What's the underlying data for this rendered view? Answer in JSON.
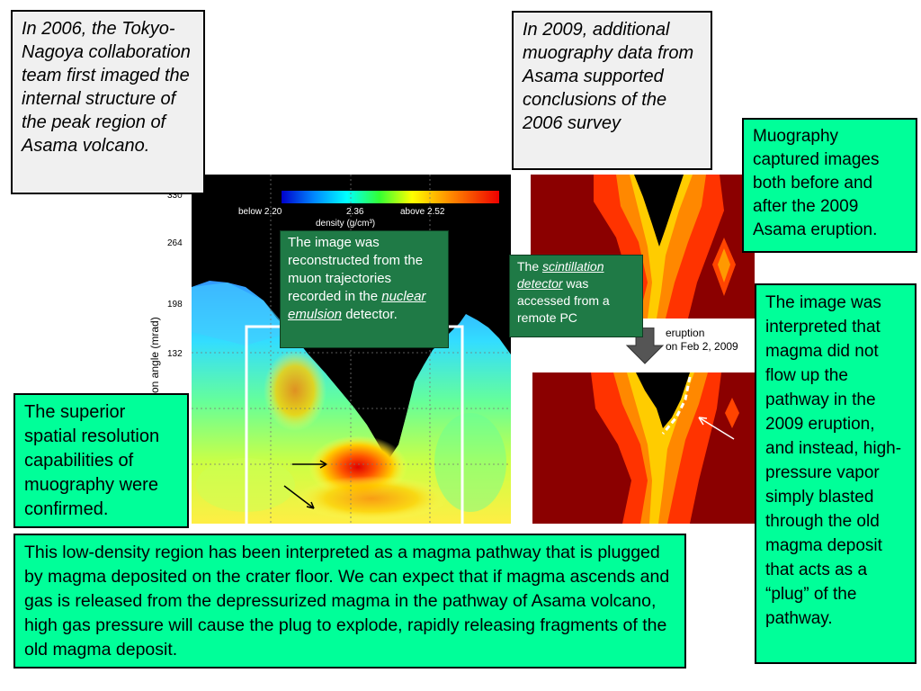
{
  "notes": {
    "note_2006": "In 2006, the Tokyo-Nagoya collaboration team first imaged the internal structure of the peak region of Asama volcano.",
    "note_2009": "In 2009, additional muography data from Asama supported conclusions of the 2006 survey",
    "muography_captured": "Muography captured images both before and after the 2009 Asama eruption.",
    "interpretation": "The image was interpreted that magma did not flow up the pathway in the 2009 eruption, and instead, high-pressure vapor simply blasted through the old magma deposit that acts as a “plug” of the pathway.",
    "superior_resolution": "The superior spatial resolution capabilities of muography were confirmed.",
    "low_density_region": "This low-density region has been interpreted as a magma pathway that is plugged by magma deposited on the crater floor. We can expect that if magma ascends and gas is released from the depressurized magma in the pathway of Asama volcano, high gas pressure will cause the plug to explode, rapidly releasing fragments of the old magma deposit."
  },
  "reconstruction_note": {
    "before": "The image was reconstructed from the muon trajectories recorded in the ",
    "link": "nuclear emulsion",
    "after": " detector."
  },
  "scintillation_note": {
    "before": "The ",
    "link": "scintillation detector",
    "after": " was accessed from a remote PC"
  },
  "density_map": {
    "y_ticks": [
      "330",
      "264",
      "198",
      "132"
    ],
    "y_axis_label": "on angle (mrad)",
    "colorbar": {
      "low": "below 2.20",
      "mid": "2.36",
      "high": "above 2.52",
      "label": "density (g/cm³)"
    }
  },
  "eruption_label": {
    "line1": "eruption",
    "line2": "on Feb 2, 2009"
  }
}
